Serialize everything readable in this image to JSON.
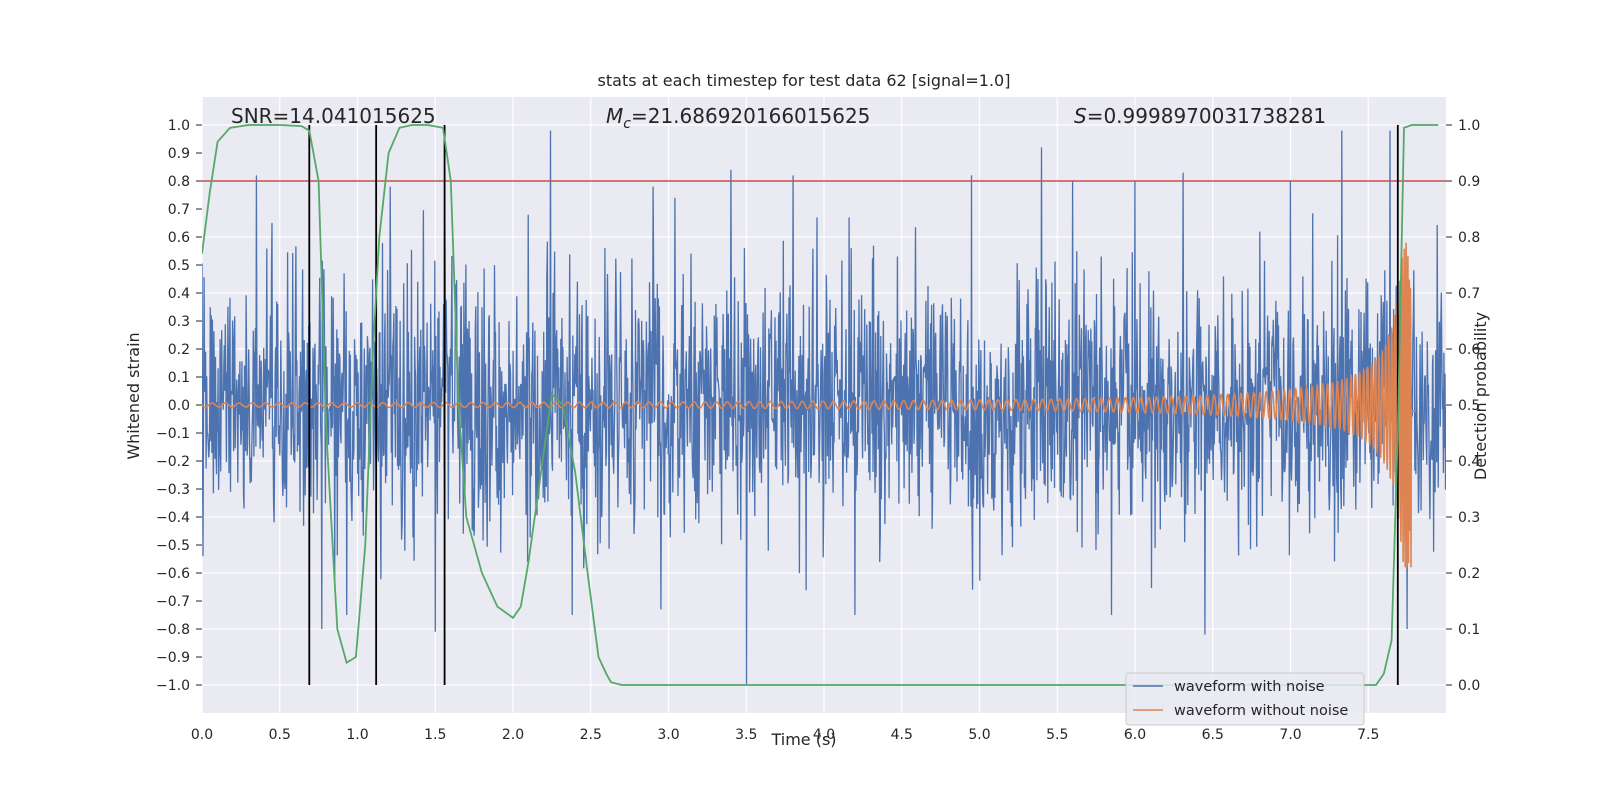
{
  "chart_data": {
    "type": "line",
    "title": "stats at each timestep for test data 62 [signal=1.0]",
    "xlabel": "Time (s)",
    "ylabel": "Whitened strain",
    "y2label": "Detection probability",
    "xlim": [
      0.0,
      8.0
    ],
    "ylim": [
      -1.1,
      1.1
    ],
    "y2lim": [
      -0.05,
      1.05
    ],
    "xticks": [
      "0.0",
      "0.5",
      "1.0",
      "1.5",
      "2.0",
      "2.5",
      "3.0",
      "3.5",
      "4.0",
      "4.5",
      "5.0",
      "5.5",
      "6.0",
      "6.5",
      "7.0",
      "7.5"
    ],
    "yticks": [
      "1.0",
      "0.9",
      "0.8",
      "0.7",
      "0.6",
      "0.5",
      "0.4",
      "0.3",
      "0.2",
      "0.1",
      "0.0",
      "−0.1",
      "−0.2",
      "−0.3",
      "−0.4",
      "−0.5",
      "−0.6",
      "−0.7",
      "−0.8",
      "−0.9",
      "−1.0"
    ],
    "y2ticks": [
      "1.0",
      "0.9",
      "0.8",
      "0.7",
      "0.6",
      "0.5",
      "0.4",
      "0.3",
      "0.2",
      "0.1",
      "0.0"
    ],
    "grid": true,
    "legend_position": "lower right",
    "annotations": {
      "snr": "SNR=14.041015625",
      "mc_symbol": "M",
      "mc_sub": "c",
      "mc_value": "=21.686920166015625",
      "s_symbol": "S",
      "s_value": "=0.9998970031738281"
    },
    "threshold_line": {
      "axis": "right",
      "value": 0.9
    },
    "vertical_markers_x": [
      0.69,
      1.12,
      1.56,
      7.69
    ],
    "series": [
      {
        "name": "waveform with noise",
        "axis": "left",
        "kind": "noise",
        "x_range": [
          0.0,
          8.0
        ],
        "typical_envelope": 0.42,
        "spikes": [
          {
            "x": 0.35,
            "y": 0.82
          },
          {
            "x": 0.45,
            "y": 0.65
          },
          {
            "x": 0.77,
            "y": -0.8
          },
          {
            "x": 0.93,
            "y": -0.75
          },
          {
            "x": 1.21,
            "y": 0.78
          },
          {
            "x": 1.5,
            "y": -0.81
          },
          {
            "x": 1.56,
            "y": 0.8
          },
          {
            "x": 2.24,
            "y": 0.98
          },
          {
            "x": 2.38,
            "y": -0.75
          },
          {
            "x": 2.9,
            "y": 0.78
          },
          {
            "x": 3.04,
            "y": 0.74
          },
          {
            "x": 3.5,
            "y": -1.0
          },
          {
            "x": 3.4,
            "y": 0.84
          },
          {
            "x": 3.8,
            "y": 0.82
          },
          {
            "x": 4.2,
            "y": -0.75
          },
          {
            "x": 5.4,
            "y": 0.92
          },
          {
            "x": 5.85,
            "y": -0.75
          },
          {
            "x": 6.0,
            "y": 0.8
          },
          {
            "x": 6.31,
            "y": 0.83
          },
          {
            "x": 6.45,
            "y": -0.82
          },
          {
            "x": 7.0,
            "y": 0.8
          },
          {
            "x": 7.33,
            "y": 0.98
          },
          {
            "x": 7.64,
            "y": 0.98
          },
          {
            "x": 7.75,
            "y": -0.8
          },
          {
            "x": 2.95,
            "y": -0.73
          },
          {
            "x": 4.95,
            "y": 0.82
          },
          {
            "x": 5.6,
            "y": 0.8
          }
        ]
      },
      {
        "name": "waveform without noise",
        "axis": "left",
        "kind": "chirp",
        "x_range": [
          0.0,
          7.8
        ],
        "merger_time": 7.78,
        "peak": 0.58,
        "early_amplitude": 0.007
      },
      {
        "name": "",
        "axis": "right",
        "kind": "detection",
        "x": [
          0.0,
          0.05,
          0.1,
          0.18,
          0.3,
          0.5,
          0.64,
          0.69,
          0.75,
          0.8,
          0.87,
          0.93,
          0.99,
          1.05,
          1.1,
          1.14,
          1.2,
          1.27,
          1.35,
          1.45,
          1.55,
          1.6,
          1.65,
          1.7,
          1.8,
          1.9,
          2.0,
          2.05,
          2.1,
          2.18,
          2.25,
          2.32,
          2.4,
          2.48,
          2.55,
          2.6,
          2.63,
          2.7,
          3.0,
          4.0,
          5.0,
          5.5,
          6.0,
          6.5,
          7.0,
          7.55,
          7.6,
          7.65,
          7.69,
          7.73,
          7.78,
          7.84,
          7.95
        ],
        "y": [
          0.77,
          0.88,
          0.97,
          0.995,
          1.0,
          1.0,
          0.998,
          0.99,
          0.9,
          0.45,
          0.1,
          0.04,
          0.05,
          0.25,
          0.6,
          0.8,
          0.95,
          0.995,
          1.0,
          1.0,
          0.995,
          0.9,
          0.5,
          0.3,
          0.2,
          0.14,
          0.12,
          0.14,
          0.22,
          0.38,
          0.52,
          0.5,
          0.38,
          0.2,
          0.05,
          0.02,
          0.005,
          0.0,
          0.0,
          0.0,
          0.0,
          0.0,
          0.0,
          0.0,
          0.0,
          0.0,
          0.02,
          0.08,
          0.45,
          0.995,
          1.0,
          1.0,
          1.0
        ]
      }
    ]
  },
  "colors": {
    "noise": "#4c72b0",
    "chirp": "#dd8452",
    "detection": "#55a868",
    "threshold": "#c44e52",
    "marker": "#000000",
    "plot_bg": "#eaeaf2",
    "grid": "#ffffff"
  }
}
